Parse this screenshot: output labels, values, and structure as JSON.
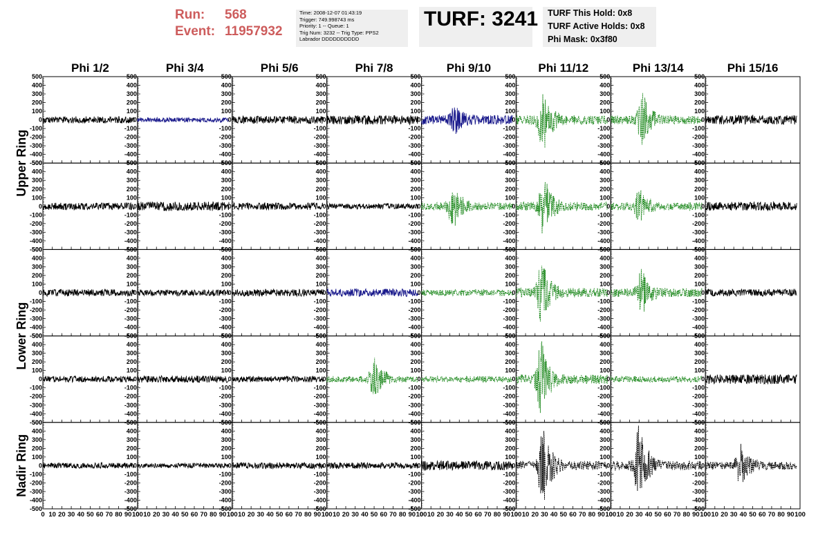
{
  "run_label": "Run:",
  "run_value": "568",
  "event_label": "Event:",
  "event_value": "11957932",
  "trigger_info": [
    "Time: 2008-12-07 01:43:19",
    "Trigger: 749.998743 ms",
    "Priority: 1 -- Queue: 1",
    "Trig Num: 3232 -- Trig Type: PPS2",
    "Labrador DDDDDDDDDD"
  ],
  "turf_title": "TURF: 3241",
  "turf_info": [
    "TURF This Hold: 0x8",
    "TURF Active Holds: 0x8",
    "Phi Mask: 0x3f80"
  ],
  "colors": {
    "run_event": "#cd5c5c",
    "black": "#000000",
    "blue": "#1a1a8c",
    "green": "#228b22"
  },
  "chart_data": {
    "type": "line",
    "columns": [
      "Phi 1/2",
      "Phi 3/4",
      "Phi 5/6",
      "Phi 7/8",
      "Phi 9/10",
      "Phi 11/12",
      "Phi 13/14",
      "Phi 15/16"
    ],
    "row_labels": [
      "Upper Ring",
      "Lower Ring",
      "Nadir Ring"
    ],
    "xlim": [
      0,
      100
    ],
    "ylim": [
      -500,
      500
    ],
    "y_ticks": [
      500,
      400,
      300,
      200,
      100,
      0,
      -100,
      -200,
      -300,
      -400,
      -500
    ],
    "y_tick_labels": [
      "500",
      "400",
      "300",
      "200",
      "100",
      "0",
      "-100",
      "-200",
      "-300",
      "-400",
      "-500"
    ],
    "x_ticks": [
      0,
      10,
      20,
      30,
      40,
      50,
      60,
      70,
      80,
      90,
      100
    ],
    "x_tick_labels": [
      "0",
      "10",
      "20",
      "30",
      "40",
      "50",
      "60",
      "70",
      "80",
      "90",
      "100"
    ],
    "panels": [
      [
        "black",
        "blue",
        "black",
        "black",
        "blue",
        "green",
        "green",
        "black"
      ],
      [
        "black",
        "black",
        "black",
        "black",
        "green",
        "green",
        "green",
        "black"
      ],
      [
        "black",
        "black",
        "black",
        "blue",
        "green",
        "green",
        "green",
        "black"
      ],
      [
        "black",
        "black",
        "black",
        "green",
        "green",
        "green",
        "green",
        "black"
      ],
      [
        "black",
        "black",
        "black",
        "black",
        "black",
        "black",
        "black",
        "black"
      ]
    ],
    "row_amplitudes": [
      [
        45,
        30,
        50,
        60,
        60,
        60,
        55,
        60
      ],
      [
        45,
        60,
        45,
        35,
        50,
        55,
        50,
        55
      ],
      [
        45,
        40,
        45,
        50,
        40,
        60,
        55,
        45
      ],
      [
        40,
        45,
        40,
        40,
        40,
        60,
        40,
        60
      ],
      [
        35,
        30,
        40,
        40,
        60,
        60,
        60,
        50
      ]
    ],
    "row_peaks": [
      [
        0,
        0,
        0,
        0,
        120,
        320,
        260,
        0
      ],
      [
        0,
        0,
        0,
        0,
        230,
        300,
        160,
        0
      ],
      [
        0,
        0,
        0,
        0,
        0,
        320,
        230,
        0
      ],
      [
        0,
        0,
        0,
        230,
        0,
        380,
        0,
        0
      ],
      [
        0,
        0,
        0,
        0,
        0,
        420,
        420,
        200
      ]
    ],
    "row_peak_x": [
      [
        0,
        0,
        0,
        0,
        35,
        28,
        33,
        0
      ],
      [
        0,
        0,
        0,
        0,
        33,
        29,
        30,
        0
      ],
      [
        0,
        0,
        0,
        0,
        0,
        27,
        32,
        0
      ],
      [
        0,
        0,
        0,
        50,
        0,
        26,
        0,
        0
      ],
      [
        0,
        0,
        0,
        0,
        0,
        28,
        30,
        37
      ]
    ]
  }
}
